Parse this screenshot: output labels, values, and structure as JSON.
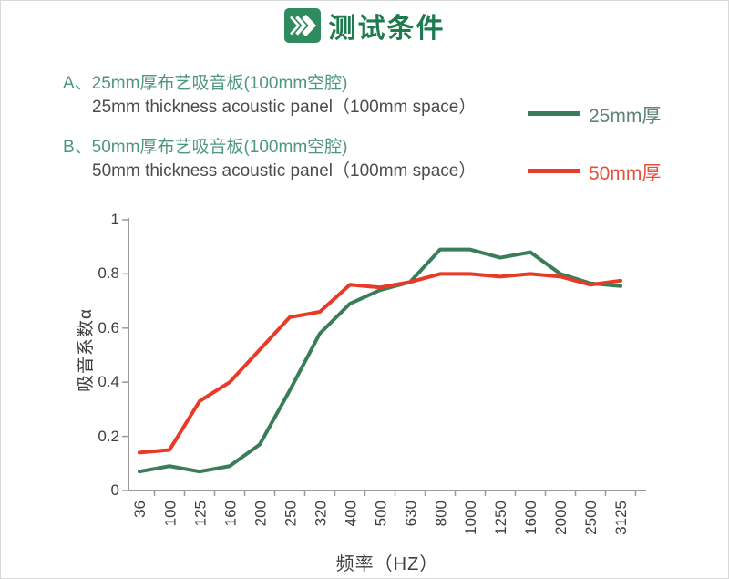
{
  "header": {
    "title": "测试条件",
    "icon": "chevrons-right-icon",
    "accent_color": "#1e7b4f"
  },
  "panels": [
    {
      "id": "A",
      "label_cn": "A、25mm厚布艺吸音板(100mm空腔)",
      "label_en": "25mm thickness acoustic panel（100mm space）"
    },
    {
      "id": "B",
      "label_cn": "B、50mm厚布艺吸音板(100mm空腔)",
      "label_en": "50mm thickness acoustic panel（100mm space）"
    }
  ],
  "legend": [
    {
      "label": "25mm厚",
      "swatch_color": "#3a7d59",
      "label_color": "#5e8373"
    },
    {
      "label": "50mm厚",
      "swatch_color": "#e83a27",
      "label_color": "#e6503c"
    }
  ],
  "chart_data": {
    "type": "line",
    "title": "",
    "xlabel": "频率（HZ）",
    "ylabel": "吸音系数α",
    "categories": [
      "36",
      "100",
      "125",
      "160",
      "200",
      "250",
      "320",
      "400",
      "500",
      "630",
      "800",
      "1000",
      "1250",
      "1600",
      "2000",
      "2500",
      "3125"
    ],
    "y_ticks": [
      "0",
      "0.2",
      "0.4",
      "0.6",
      "0.8",
      "1"
    ],
    "ylim": [
      0,
      1
    ],
    "grid": false,
    "legend_position": "outside-top-right",
    "axis_color": "#9b9b9b",
    "series": [
      {
        "name": "25mm厚",
        "color": "#3a7d59",
        "values": [
          0.07,
          0.09,
          0.07,
          0.09,
          0.17,
          0.37,
          0.58,
          0.69,
          0.74,
          0.77,
          0.89,
          0.89,
          0.86,
          0.88,
          0.8,
          0.765,
          0.755
        ]
      },
      {
        "name": "50mm厚",
        "color": "#e83a27",
        "values": [
          0.14,
          0.15,
          0.33,
          0.4,
          0.52,
          0.64,
          0.66,
          0.76,
          0.75,
          0.77,
          0.8,
          0.8,
          0.79,
          0.8,
          0.79,
          0.76,
          0.775
        ]
      }
    ]
  }
}
